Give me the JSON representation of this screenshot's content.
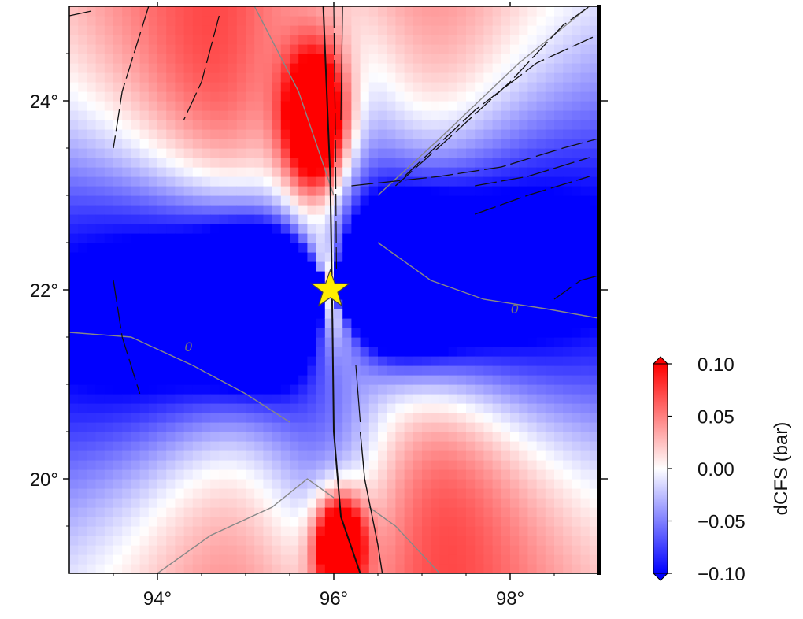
{
  "map": {
    "lon_range": [
      93,
      99
    ],
    "lat_range": [
      19,
      25
    ],
    "x_ticks": [
      {
        "value": 94,
        "label": "94°"
      },
      {
        "value": 96,
        "label": "96°"
      },
      {
        "value": 98,
        "label": "98°"
      }
    ],
    "y_ticks": [
      {
        "value": 20,
        "label": "20°"
      },
      {
        "value": 22,
        "label": "22°"
      },
      {
        "value": 24,
        "label": "24°"
      }
    ],
    "contour_label": "0",
    "epicenter": {
      "lon": 95.96,
      "lat": 22.0,
      "color": "#ffee00"
    }
  },
  "colorbar": {
    "title": "dCFS (bar)",
    "ticks": [
      "0.10",
      "0.05",
      "0.00",
      "−0.05",
      "−0.10"
    ],
    "min": -0.1,
    "max": 0.1,
    "colors": {
      "positive": "#ff0000",
      "zero": "#ffffff",
      "negative": "#0000ff"
    }
  }
}
